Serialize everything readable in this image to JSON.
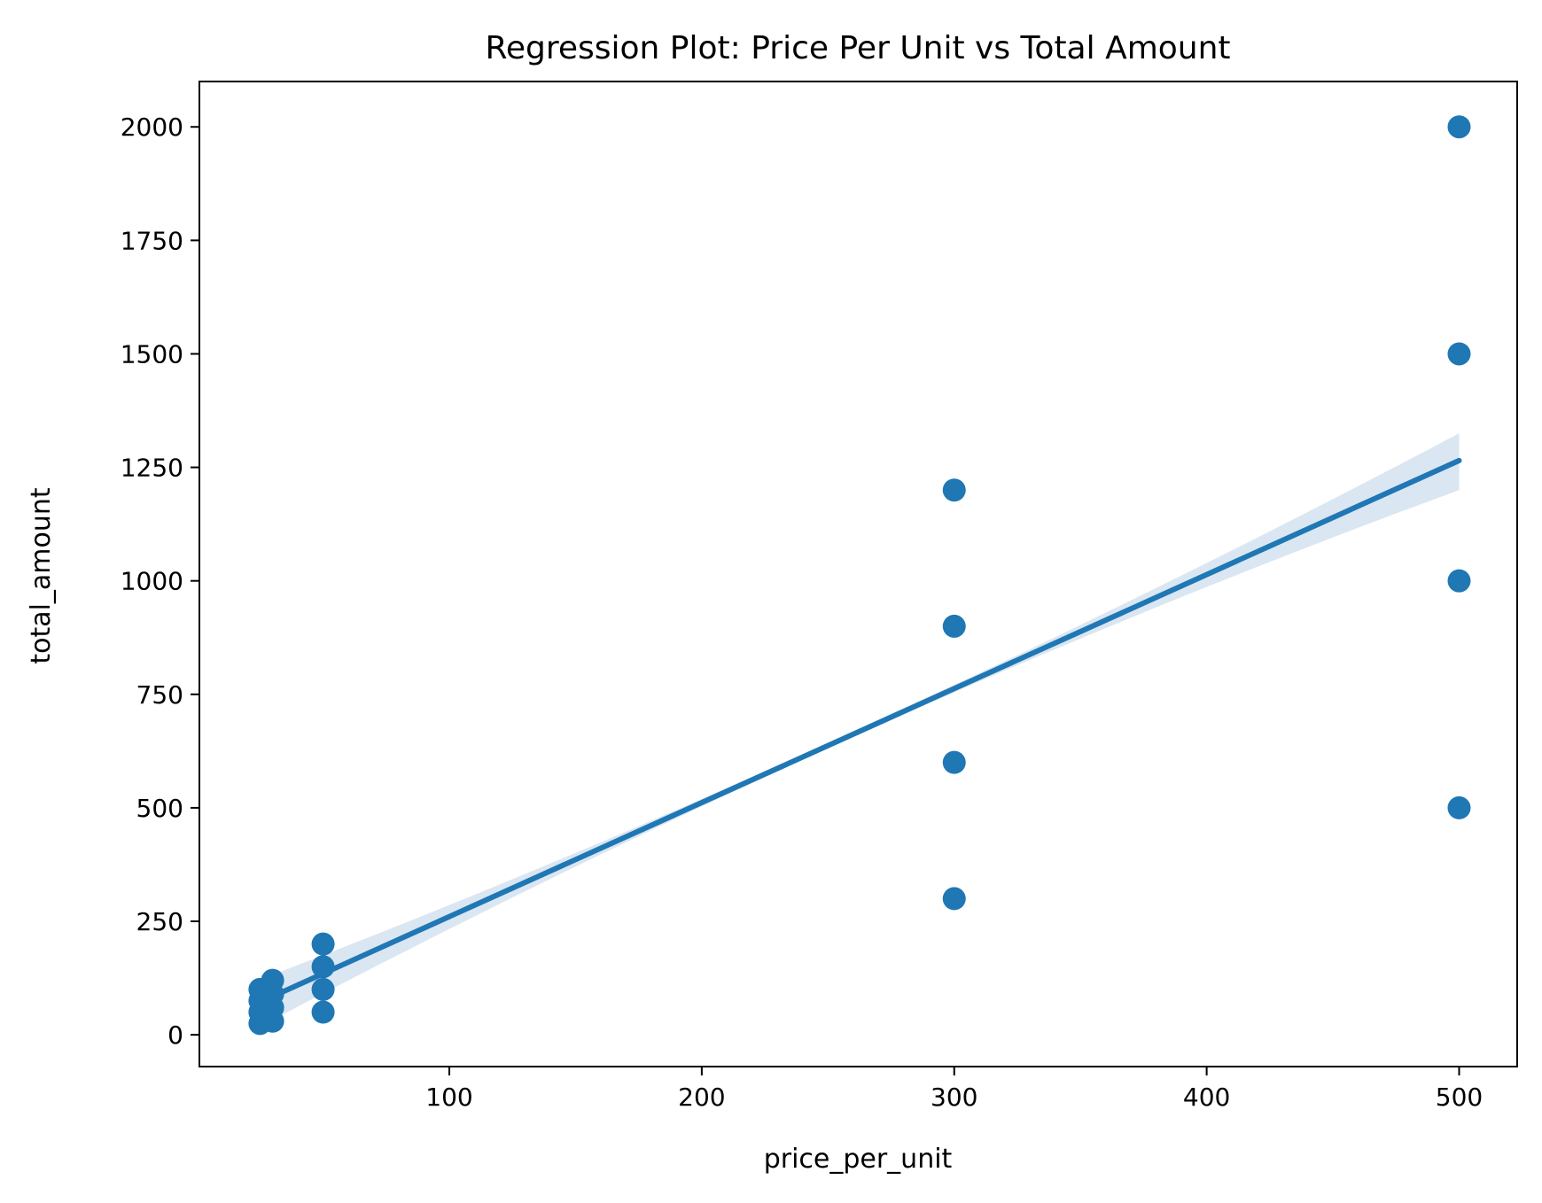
{
  "chart_data": {
    "type": "scatter",
    "title": "Regression Plot: Price Per Unit vs Total Amount",
    "xlabel": "price_per_unit",
    "ylabel": "total_amount",
    "xlim": [
      1,
      523
    ],
    "ylim": [
      -70,
      2100
    ],
    "xticks": [
      100,
      200,
      300,
      400,
      500
    ],
    "yticks": [
      0,
      250,
      500,
      750,
      1000,
      1250,
      1500,
      1750,
      2000
    ],
    "grid": false,
    "color": "#1f77b4",
    "band_color": "#dae6f2",
    "points": [
      {
        "x": 25,
        "y": 25
      },
      {
        "x": 25,
        "y": 50
      },
      {
        "x": 25,
        "y": 75
      },
      {
        "x": 25,
        "y": 100
      },
      {
        "x": 30,
        "y": 30
      },
      {
        "x": 30,
        "y": 60
      },
      {
        "x": 30,
        "y": 90
      },
      {
        "x": 30,
        "y": 120
      },
      {
        "x": 50,
        "y": 50
      },
      {
        "x": 50,
        "y": 100
      },
      {
        "x": 50,
        "y": 150
      },
      {
        "x": 50,
        "y": 200
      },
      {
        "x": 300,
        "y": 300
      },
      {
        "x": 300,
        "y": 600
      },
      {
        "x": 300,
        "y": 900
      },
      {
        "x": 300,
        "y": 1200
      },
      {
        "x": 500,
        "y": 500
      },
      {
        "x": 500,
        "y": 1000
      },
      {
        "x": 500,
        "y": 1500
      },
      {
        "x": 500,
        "y": 2000
      }
    ],
    "regression": {
      "x_start": 25,
      "y_start": 72,
      "x_end": 500,
      "y_end": 1265,
      "ci_upper_end": 1325,
      "ci_lower_end": 1200
    }
  }
}
